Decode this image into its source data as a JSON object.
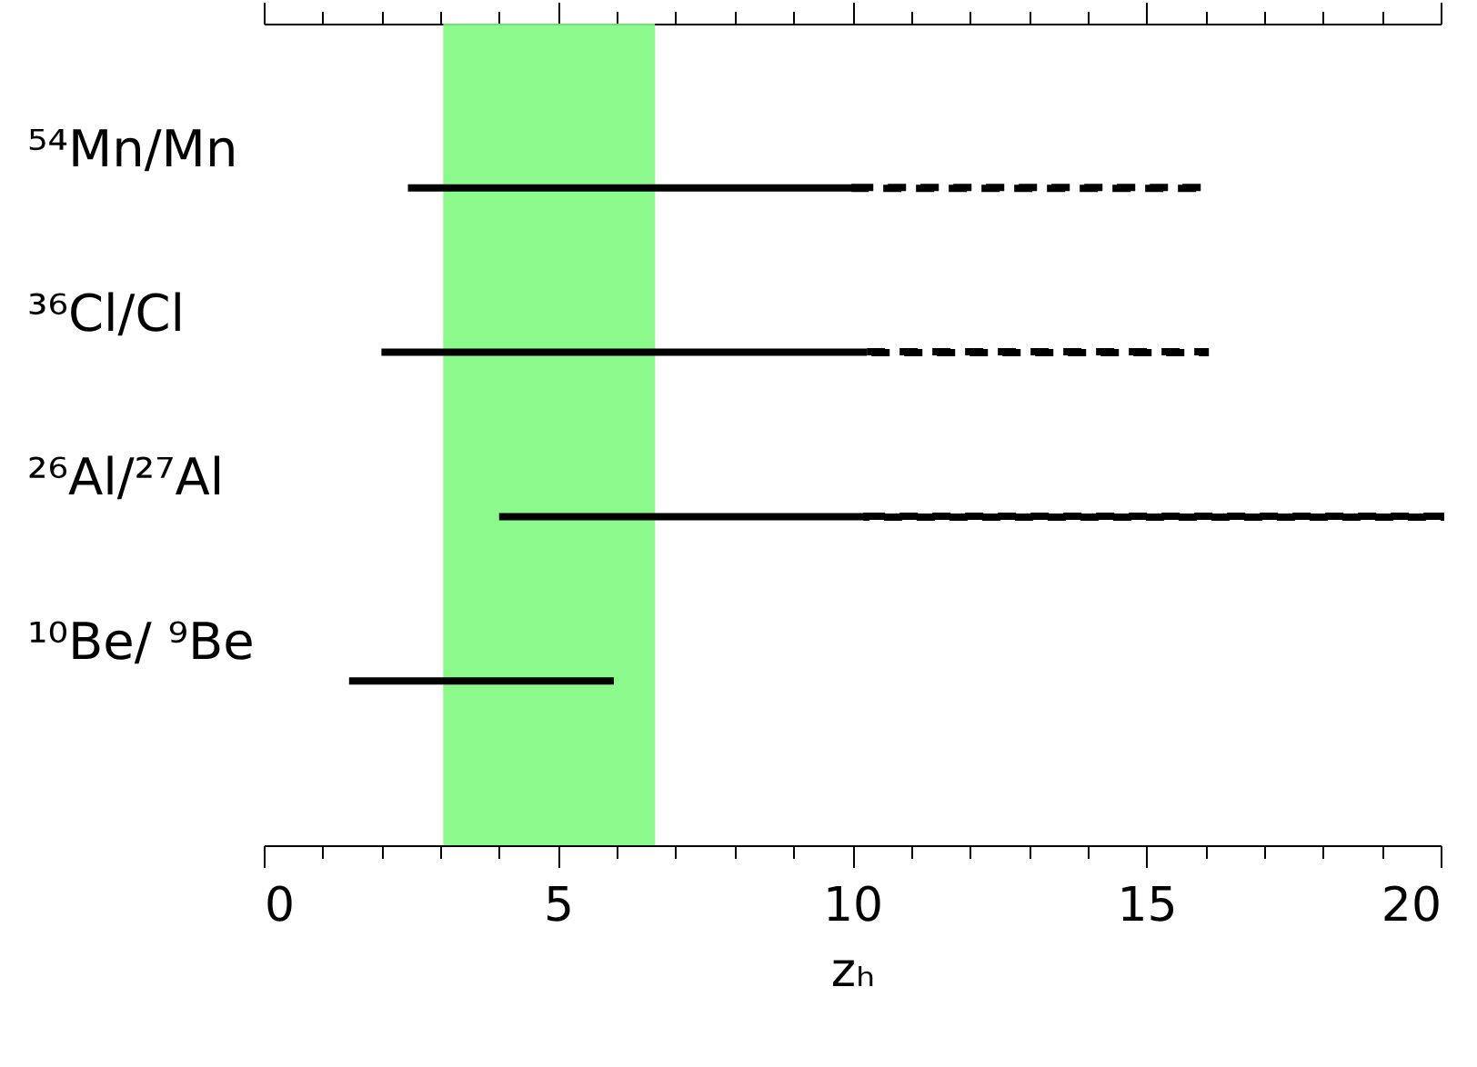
{
  "chart_data": {
    "type": "bar",
    "orientation": "horizontal",
    "xlabel": "zₕ",
    "categories": [
      "⁵⁴Mn/Mn",
      "³⁶Cl/Cl",
      "²⁶Al/²⁷Al",
      "¹⁰Be/ ⁹Be"
    ],
    "series": [
      {
        "color": "#000000",
        "line_style": "solid",
        "base": [
          2.45,
          2.0,
          4.0,
          1.45
        ],
        "values": [
          7.6,
          8.25,
          6.25,
          4.5
        ]
      },
      {
        "color": "#000000",
        "line_style": "dashed",
        "base": [
          10.05,
          10.25,
          10.25,
          null
        ],
        "values": [
          5.95,
          5.75,
          9.75,
          null
        ]
      }
    ],
    "bands": [
      {
        "axis": "x",
        "from": 3.05,
        "to": 6.65,
        "color": "#80f880"
      }
    ],
    "xlim": [
      0,
      20
    ],
    "xticks": [
      0,
      {
        "value": 1,
        "label": null
      },
      {
        "value": 2,
        "label": null
      },
      {
        "value": 3,
        "label": null
      },
      {
        "value": 4,
        "label": null
      },
      5,
      {
        "value": 6,
        "label": null
      },
      {
        "value": 7,
        "label": null
      },
      {
        "value": 8,
        "label": null
      },
      {
        "value": 9,
        "label": null
      },
      10,
      {
        "value": 11,
        "label": null
      },
      {
        "value": 12,
        "label": null
      },
      {
        "value": 13,
        "label": null
      },
      {
        "value": 14,
        "label": null
      },
      15,
      {
        "value": 16,
        "label": null
      },
      {
        "value": 17,
        "label": null
      },
      {
        "value": 18,
        "label": null
      },
      {
        "value": 19,
        "label": null
      },
      20
    ],
    "grid": false
  }
}
